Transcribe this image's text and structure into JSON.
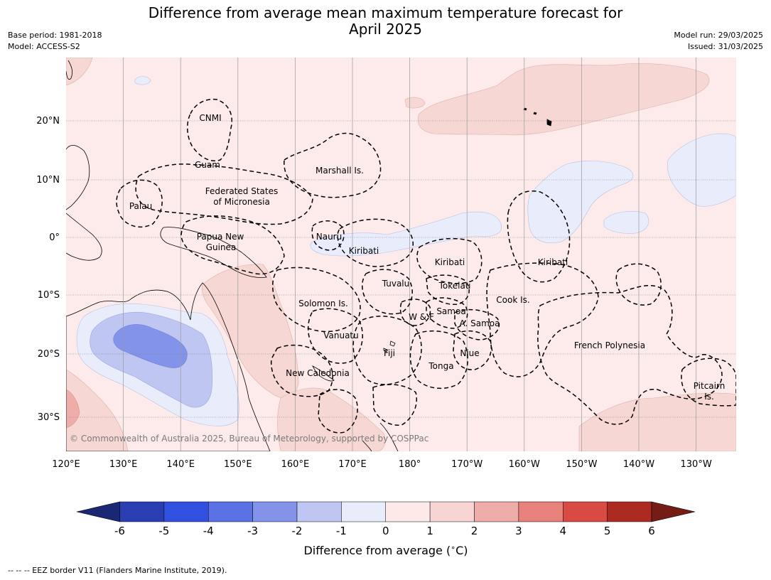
{
  "header": {
    "title_line1": "Difference from average mean maximum temperature forecast for",
    "title_line2": "April 2025",
    "left_line1": "Base period: 1981-2018",
    "left_line2": "Model: ACCESS-S2",
    "right_line1": "Model run: 29/03/2025",
    "right_line2": "Issued: 31/03/2025"
  },
  "map": {
    "lon_ticks": [
      "120°E",
      "130°E",
      "140°E",
      "150°E",
      "160°E",
      "170°E",
      "180°",
      "170°W",
      "160°W",
      "150°W",
      "140°W",
      "130°W"
    ],
    "lat_ticks": [
      "20°N",
      "10°N",
      "0°",
      "10°S",
      "20°S",
      "30°S"
    ],
    "copyright": "© Commonwealth of Australia 2025, Bureau of Meteorology, supported by COSPPac",
    "labels": {
      "cnmi": "CNMI",
      "guam": "Guam",
      "marshall": "Marshall Is.",
      "fsm1": "Federated States",
      "fsm2": "of Micronesia",
      "palau": "Palau",
      "png1": "Papua New",
      "png2": "Guinea",
      "nauru": "Nauru",
      "kiribati_w": "Kiribati",
      "kiribati_c": "Kiribati",
      "kiribati_e": "Kiribati",
      "tuvalu": "Tuvalu",
      "tokelau": "Tokelau",
      "solomon": "Solomon Is.",
      "samoa": "Samoa",
      "wf": "W & F",
      "asamoa": "A. Samoa",
      "cook": "Cook Is.",
      "vanuatu": "Vanuatu",
      "fiji": "Fiji",
      "niue": "Niue",
      "tonga": "Tonga",
      "french_polynesia": "French Polynesia",
      "new_caledonia": "New Caledonia",
      "pitcairn1": "Pitcairn",
      "pitcairn2": "Is."
    }
  },
  "colorbar": {
    "ticks": [
      "-6",
      "-5",
      "-4",
      "-3",
      "-2",
      "-1",
      "0",
      "1",
      "2",
      "3",
      "4",
      "5",
      "6"
    ],
    "colors": [
      "#1a2775",
      "#2a3eb1",
      "#3050e0",
      "#5a72e6",
      "#8493ea",
      "#bfc6f2",
      "#e9ecfb",
      "#fce9e8",
      "#f6d5d2",
      "#eeada8",
      "#e6817c",
      "#d94a42",
      "#ad2a22",
      "#761c16"
    ],
    "label": "Difference from average ($^\\circ$C)"
  },
  "footer": {
    "text": "--  --  -- EEZ border V11 (Flanders Marine Institute, 2019)."
  }
}
